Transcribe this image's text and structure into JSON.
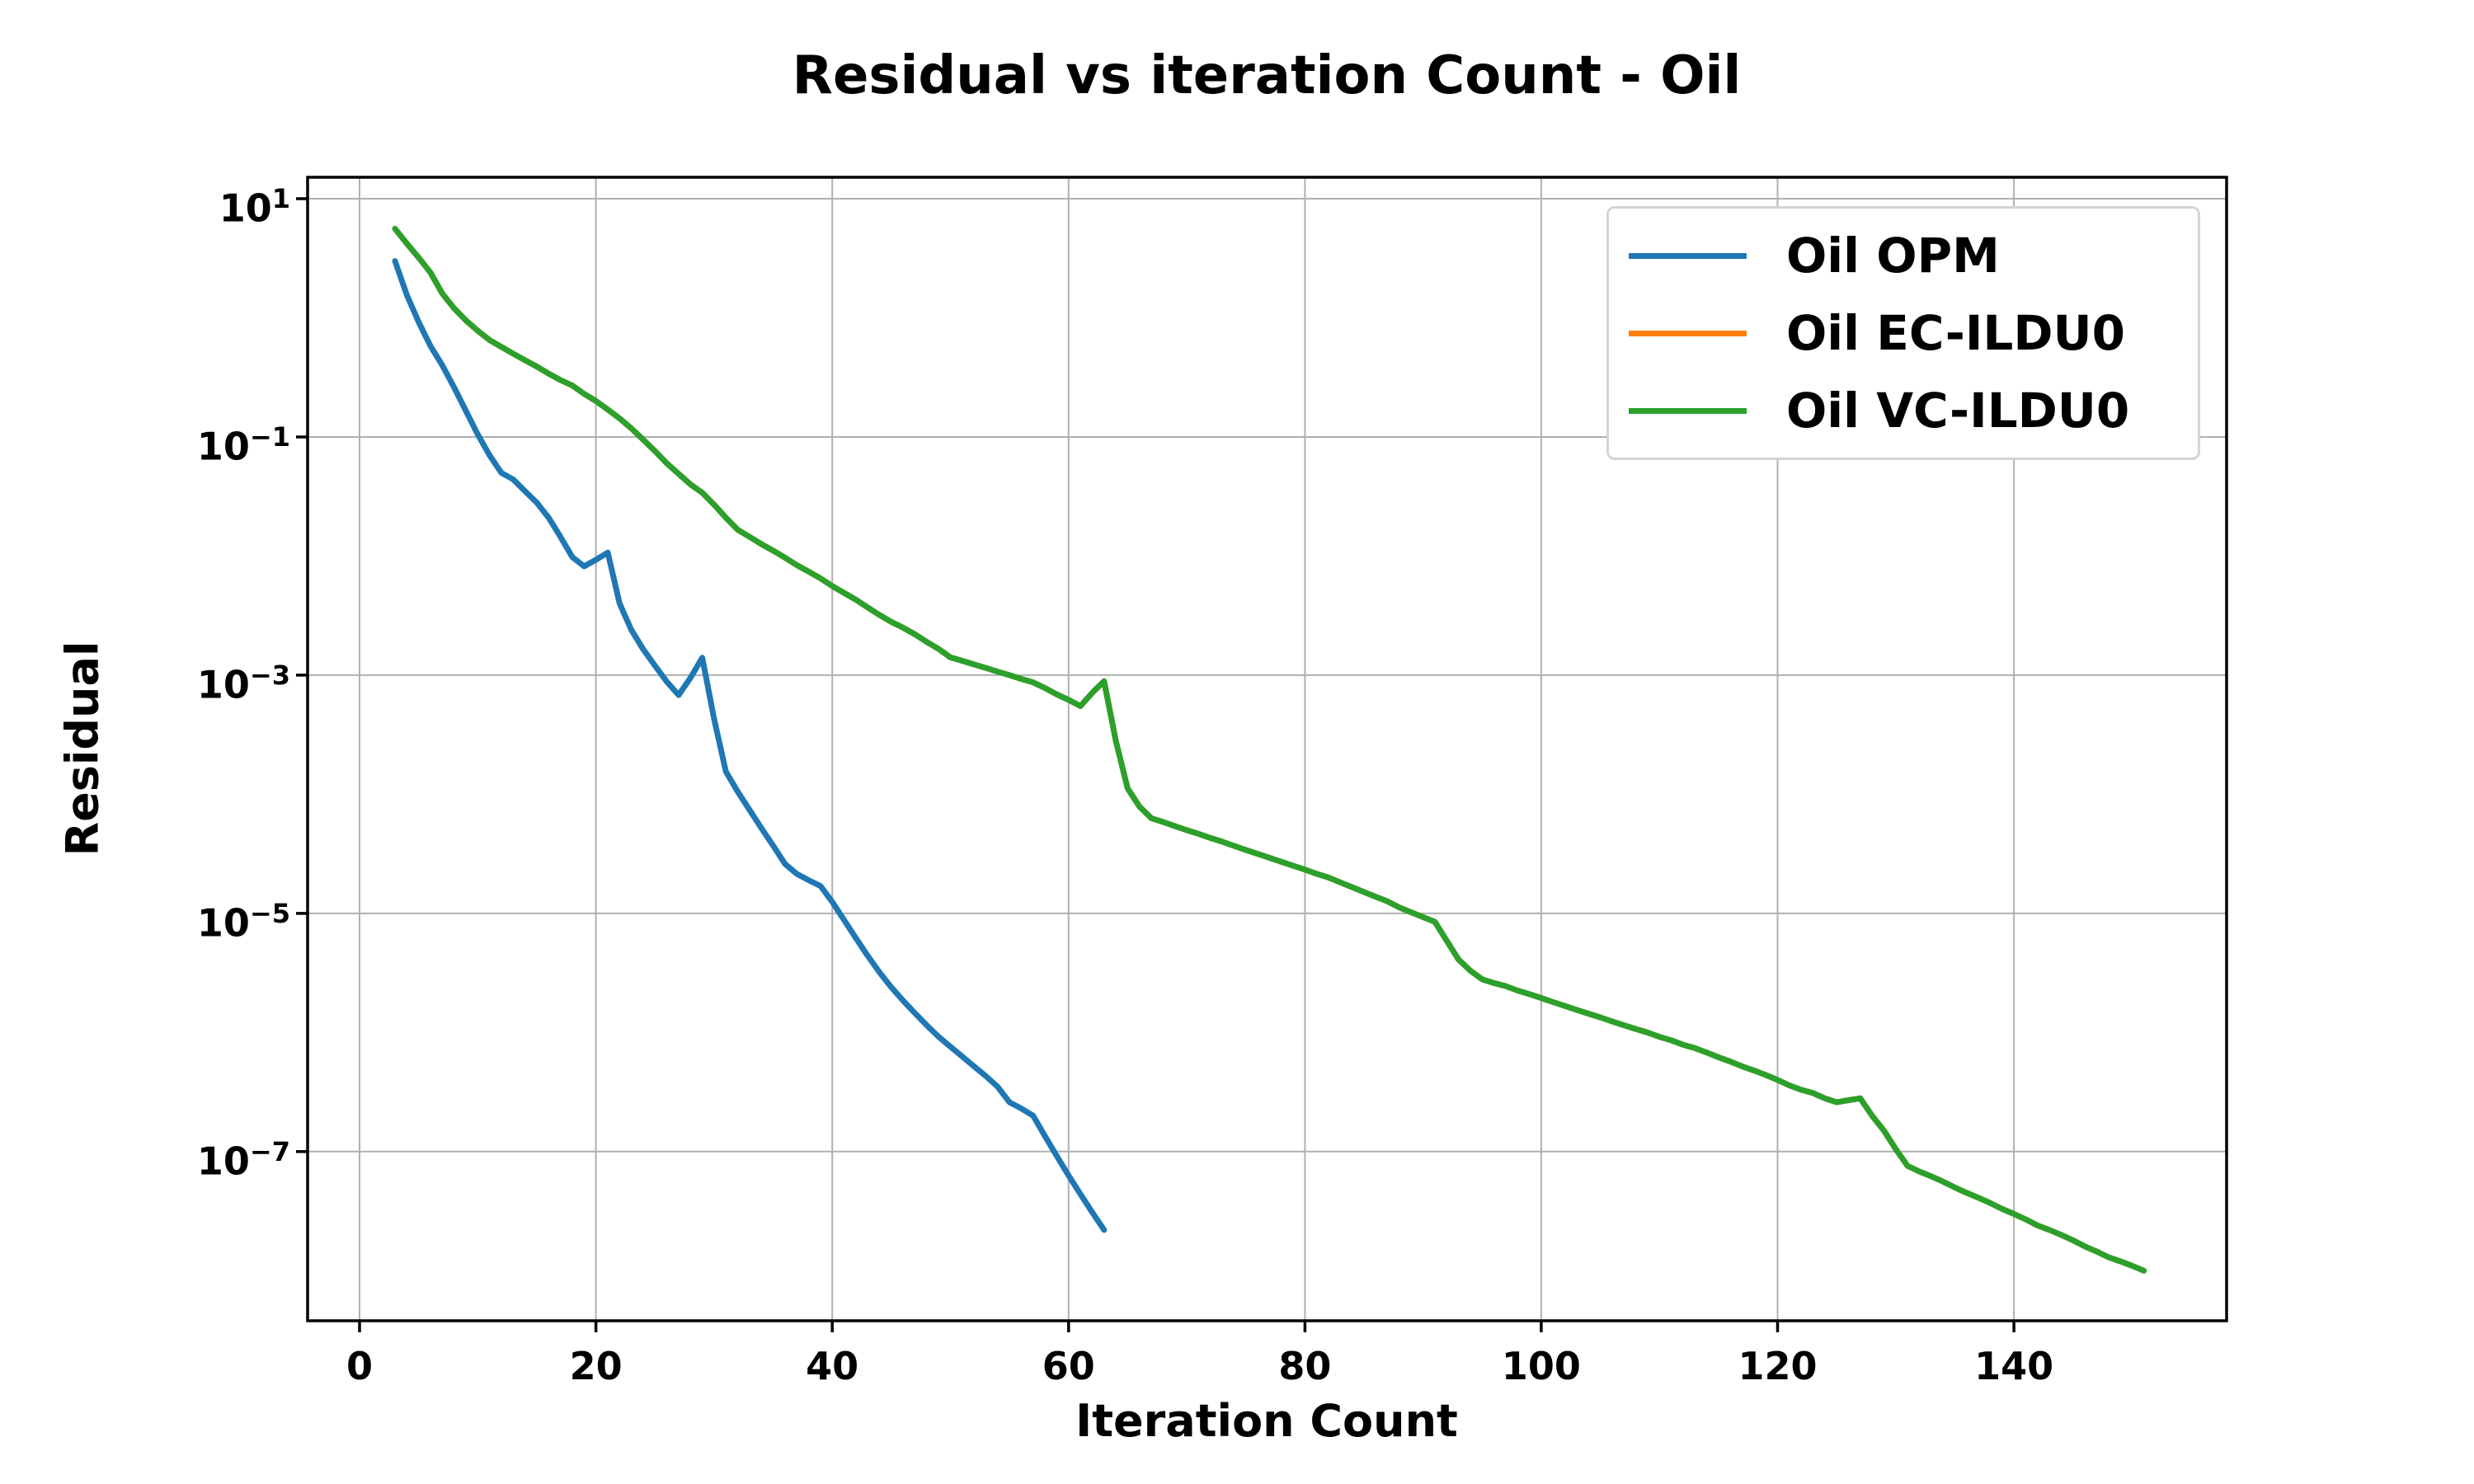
{
  "title": "Residual vs iteration Count - Oil",
  "axes": {
    "xlabel": "Iteration Count",
    "ylabel": "Residual",
    "x_tick_labels": [
      "0",
      "20",
      "40",
      "60",
      "80",
      "100",
      "120",
      "140"
    ],
    "x_tick_values": [
      0,
      20,
      40,
      60,
      80,
      100,
      120,
      140
    ],
    "y_tick_base": "10",
    "y_tick_exponents": [
      "1",
      "−1",
      "−3",
      "−5",
      "−7"
    ],
    "y_tick_exp_values": [
      1,
      -1,
      -3,
      -5,
      -7
    ],
    "grid_color": "#b0b0b0",
    "spine_color": "#000000",
    "tick_color": "#000000"
  },
  "legend": {
    "items": [
      {
        "label": "Oil OPM",
        "color": "#1f77b4"
      },
      {
        "label": "Oil EC-ILDU0",
        "color": "#ff7f0e"
      },
      {
        "label": "Oil VC-ILDU0",
        "color": "#2ca02c"
      }
    ]
  },
  "chart_data": {
    "type": "line",
    "title": "Residual vs iteration Count - Oil",
    "xlabel": "Iteration Count",
    "ylabel": "Residual",
    "x_scale": "linear",
    "y_scale": "log",
    "xlim": [
      -4.4,
      158
    ],
    "ylim_log10": [
      1.18,
      -8.42
    ],
    "grid": true,
    "legend_position": "upper right",
    "line_width": 7,
    "series": [
      {
        "name": "Oil OPM",
        "color": "#1f77b4",
        "x_start": 3,
        "x_step": 1,
        "y": [
          3.0,
          1.55,
          0.92,
          0.58,
          0.4,
          0.26,
          0.165,
          0.105,
          0.07,
          0.05,
          0.044,
          0.035,
          0.028,
          0.021,
          0.0145,
          0.0098,
          0.0082,
          0.0093,
          0.0107,
          0.004,
          0.0024,
          0.00165,
          0.0012,
          0.00088,
          0.00068,
          0.00095,
          0.0014,
          0.00043,
          0.000155,
          0.000105,
          7.4e-05,
          5.2e-05,
          3.7e-05,
          2.6e-05,
          2.15e-05,
          1.9e-05,
          1.7e-05,
          1.25e-05,
          8.8e-06,
          6.2e-06,
          4.4e-06,
          3.2e-06,
          2.4e-06,
          1.85e-06,
          1.45e-06,
          1.15e-06,
          9.2e-07,
          7.6e-07,
          6.3e-07,
          5.2e-07,
          4.3e-07,
          3.5e-07,
          2.6e-07,
          2.3e-07,
          2e-07,
          1.35e-07,
          9.2e-08,
          6.3e-08,
          4.4e-08,
          3.1e-08,
          2.2e-08
        ]
      },
      {
        "name": "Oil EC-ILDU0",
        "color": "#ff7f0e",
        "x_start": 3,
        "x_step": 1,
        "y": [
          5.6,
          4.2,
          3.2,
          2.4,
          1.6,
          1.2,
          0.95,
          0.78,
          0.65,
          0.57,
          0.5,
          0.44,
          0.39,
          0.34,
          0.3,
          0.27,
          0.23,
          0.2,
          0.17,
          0.143,
          0.118,
          0.095,
          0.076,
          0.06,
          0.049,
          0.04,
          0.034,
          0.027,
          0.021,
          0.0166,
          0.0145,
          0.0126,
          0.0111,
          0.0097,
          0.0084,
          0.0074,
          0.0065,
          0.0056,
          0.0049,
          0.0043,
          0.0037,
          0.0032,
          0.0028,
          0.0025,
          0.0022,
          0.0019,
          0.00166,
          0.00141,
          0.00132,
          0.00123,
          0.00115,
          0.00107,
          0.001,
          0.00093,
          0.00087,
          0.00078,
          0.00069,
          0.00062,
          0.00055,
          0.00071,
          0.00089,
          0.00028,
          0.000112,
          7.9e-05,
          6.3e-05,
          5.85e-05,
          5.4e-05,
          5e-05,
          4.65e-05,
          4.3e-05,
          4e-05,
          3.69e-05,
          3.41e-05,
          3.16e-05,
          2.93e-05,
          2.71e-05,
          2.51e-05,
          2.33e-05,
          2.15e-05,
          2e-05,
          1.82e-05,
          1.66e-05,
          1.51e-05,
          1.38e-05,
          1.26e-05,
          1.12e-05,
          1.02e-05,
          9.3e-06,
          8.5e-06,
          5.9e-06,
          4.1e-06,
          3.3e-06,
          2.8e-06,
          2.6e-06,
          2.45e-06,
          2.25e-06,
          2.1e-06,
          1.95e-06,
          1.8e-06,
          1.67e-06,
          1.55e-06,
          1.44e-06,
          1.34e-06,
          1.24e-06,
          1.15e-06,
          1.07e-06,
          1e-06,
          9.2e-07,
          8.6e-07,
          7.9e-07,
          7.4e-07,
          6.8e-07,
          6.2e-07,
          5.7e-07,
          5.2e-07,
          4.8e-07,
          4.4e-07,
          4e-07,
          3.6e-07,
          3.3e-07,
          3.1e-07,
          2.8e-07,
          2.6e-07,
          2.7e-07,
          2.8e-07,
          2e-07,
          1.5e-07,
          1.05e-07,
          7.6e-08,
          6.8e-08,
          6.2e-08,
          5.6e-08,
          5e-08,
          4.5e-08,
          4.1e-08,
          3.7e-08,
          3.3e-08,
          3e-08,
          2.7e-08,
          2.4e-08,
          2.2e-08,
          2e-08,
          1.8e-08,
          1.6e-08,
          1.45e-08,
          1.3e-08,
          1.2e-08,
          1.1e-08,
          1e-08
        ]
      },
      {
        "name": "Oil VC-ILDU0",
        "color": "#2ca02c",
        "x_start": 3,
        "x_step": 1,
        "y": [
          5.6,
          4.2,
          3.2,
          2.4,
          1.6,
          1.2,
          0.95,
          0.78,
          0.65,
          0.57,
          0.5,
          0.44,
          0.39,
          0.34,
          0.3,
          0.27,
          0.23,
          0.2,
          0.17,
          0.143,
          0.118,
          0.095,
          0.076,
          0.06,
          0.049,
          0.04,
          0.034,
          0.027,
          0.021,
          0.0166,
          0.0145,
          0.0126,
          0.0111,
          0.0097,
          0.0084,
          0.0074,
          0.0065,
          0.0056,
          0.0049,
          0.0043,
          0.0037,
          0.0032,
          0.0028,
          0.0025,
          0.0022,
          0.0019,
          0.00166,
          0.00141,
          0.00132,
          0.00123,
          0.00115,
          0.00107,
          0.001,
          0.00093,
          0.00087,
          0.00078,
          0.00069,
          0.00062,
          0.00055,
          0.00071,
          0.00089,
          0.00028,
          0.000112,
          7.9e-05,
          6.3e-05,
          5.85e-05,
          5.4e-05,
          5e-05,
          4.65e-05,
          4.3e-05,
          4e-05,
          3.69e-05,
          3.41e-05,
          3.16e-05,
          2.93e-05,
          2.71e-05,
          2.51e-05,
          2.33e-05,
          2.15e-05,
          2e-05,
          1.82e-05,
          1.66e-05,
          1.51e-05,
          1.38e-05,
          1.26e-05,
          1.12e-05,
          1.02e-05,
          9.3e-06,
          8.5e-06,
          5.9e-06,
          4.1e-06,
          3.3e-06,
          2.8e-06,
          2.6e-06,
          2.45e-06,
          2.25e-06,
          2.1e-06,
          1.95e-06,
          1.8e-06,
          1.67e-06,
          1.55e-06,
          1.44e-06,
          1.34e-06,
          1.24e-06,
          1.15e-06,
          1.07e-06,
          1e-06,
          9.2e-07,
          8.6e-07,
          7.9e-07,
          7.4e-07,
          6.8e-07,
          6.2e-07,
          5.7e-07,
          5.2e-07,
          4.8e-07,
          4.4e-07,
          4e-07,
          3.6e-07,
          3.3e-07,
          3.1e-07,
          2.8e-07,
          2.6e-07,
          2.7e-07,
          2.8e-07,
          2e-07,
          1.5e-07,
          1.05e-07,
          7.6e-08,
          6.8e-08,
          6.2e-08,
          5.6e-08,
          5e-08,
          4.5e-08,
          4.1e-08,
          3.7e-08,
          3.3e-08,
          3e-08,
          2.7e-08,
          2.4e-08,
          2.2e-08,
          2e-08,
          1.8e-08,
          1.6e-08,
          1.45e-08,
          1.3e-08,
          1.2e-08,
          1.1e-08,
          1e-08
        ]
      }
    ]
  }
}
